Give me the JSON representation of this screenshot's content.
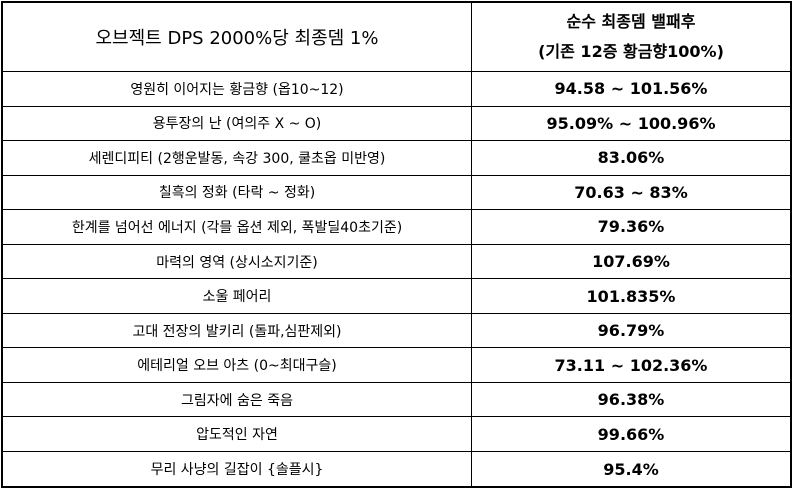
{
  "table": {
    "header": [
      "오브젝트 DPS 2000%당 최종뎀 1%",
      [
        "순수 최종뎀 밸패후",
        "(기존 12증 황금향100%)"
      ]
    ],
    "rows": [
      [
        "영원히 이어지는 황금향 (옵10~12)",
        "94.58 ~ 101.56%"
      ],
      [
        "용투장의 난 (여의주 X ~ O)",
        "95.09% ~ 100.96%"
      ],
      [
        "세렌디피티 (2행운발동, 속강 300, 쿨초옵 미반영)",
        "83.06%"
      ],
      [
        "칠흑의 정화 (타락 ~ 정화)",
        "70.63 ~ 83%"
      ],
      [
        "한계를 넘어선 에너지 (각믈 옵션 제외, 폭발딜40초기준)",
        "79.36%"
      ],
      [
        "마력의 영역 (상시소지기준)",
        "107.69%"
      ],
      [
        "소울 페어리",
        "101.835%"
      ],
      [
        "고대 전장의 발키리 (돌파,심판제외)",
        "96.79%"
      ],
      [
        "에테리얼 오브 아츠 (0~최대구슬)",
        "73.11 ~ 102.36%"
      ],
      [
        "그림자에 숨은 죽음",
        "96.38%"
      ],
      [
        "압도적인 자연",
        "99.66%"
      ],
      [
        "무리 사냥의 길잡이 {솔플시}",
        "95.4%"
      ]
    ]
  }
}
